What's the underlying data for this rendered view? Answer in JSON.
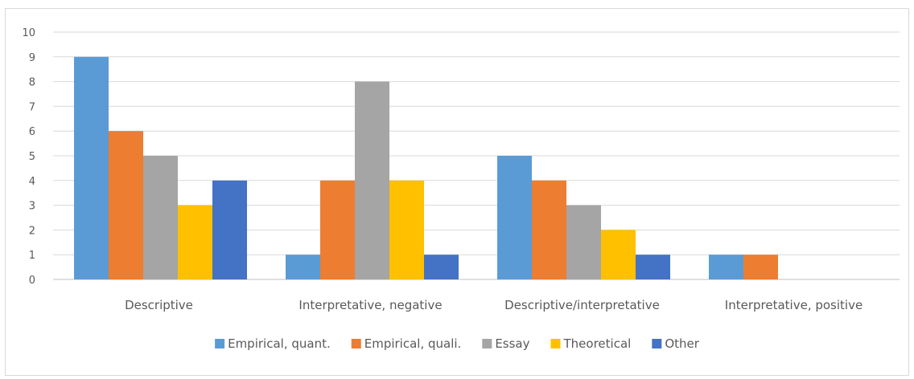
{
  "chart_data": {
    "type": "bar",
    "categories": [
      "Descriptive",
      "Interpretative, negative",
      "Descriptive/interpretative",
      "Interpretative, positive"
    ],
    "series": [
      {
        "name": "Empirical, quant.",
        "color": "#5b9bd5",
        "values": [
          9,
          1,
          5,
          1
        ]
      },
      {
        "name": "Empirical, quali.",
        "color": "#ed7d31",
        "values": [
          6,
          4,
          4,
          1
        ]
      },
      {
        "name": "Essay",
        "color": "#a5a5a5",
        "values": [
          5,
          8,
          3,
          0
        ]
      },
      {
        "name": "Theoretical",
        "color": "#ffc000",
        "values": [
          3,
          4,
          2,
          0
        ]
      },
      {
        "name": "Other",
        "color": "#4472c4",
        "values": [
          4,
          1,
          1,
          0
        ]
      }
    ],
    "yticks": [
      "0",
      "1",
      "2",
      "3",
      "4",
      "5",
      "6",
      "7",
      "8",
      "9",
      "10"
    ],
    "ylim": [
      0,
      10
    ],
    "grid": true,
    "legend_position": "bottom"
  }
}
